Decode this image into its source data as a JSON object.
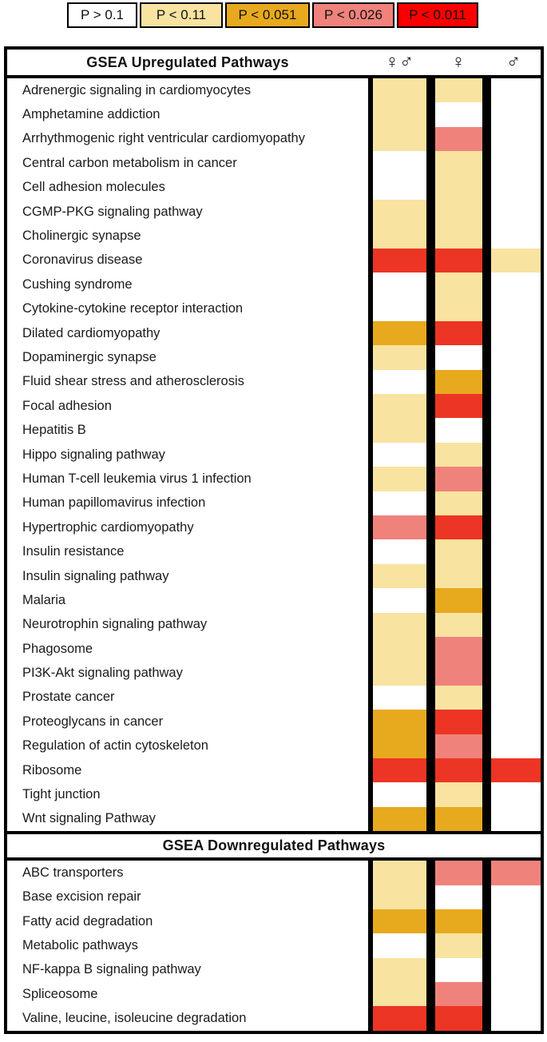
{
  "colors": {
    "white": "#FFFFFF",
    "cream": "#F8E3A1",
    "gold": "#E7A91E",
    "salmon": "#F0827C",
    "red": "#EC3524",
    "legend_red": "#FB0000",
    "border": "#000000"
  },
  "legend": {
    "items": [
      {
        "label": "P > 0.1",
        "color_key": "white"
      },
      {
        "label": "P < 0.11",
        "color_key": "cream"
      },
      {
        "label": "P < 0.051",
        "color_key": "gold"
      },
      {
        "label": "P < 0.026",
        "color_key": "salmon"
      },
      {
        "label": "P < 0.011",
        "color_key": "legend_red"
      }
    ]
  },
  "headers": {
    "col_combined": "♀♂",
    "col_female": "♀",
    "col_male": "♂"
  },
  "chart_data": {
    "type": "heatmap",
    "columns": [
      "combined",
      "female",
      "male"
    ],
    "column_symbols": [
      "♀♂",
      "♀",
      "♂"
    ],
    "value_legend": {
      "white": "P > 0.1",
      "cream": "P < 0.11",
      "gold": "P < 0.051",
      "salmon": "P < 0.026",
      "red": "P < 0.011"
    },
    "sections": [
      {
        "title": "GSEA Upregulated Pathways",
        "rows": [
          {
            "pathway": "Adrenergic signaling in cardiomyocytes",
            "cells": [
              "cream",
              "cream",
              "white"
            ]
          },
          {
            "pathway": "Amphetamine addiction",
            "cells": [
              "cream",
              "white",
              "white"
            ]
          },
          {
            "pathway": "Arrhythmogenic right ventricular cardiomyopathy",
            "cells": [
              "cream",
              "salmon",
              "white"
            ]
          },
          {
            "pathway": "Central carbon metabolism in cancer",
            "cells": [
              "white",
              "cream",
              "white"
            ]
          },
          {
            "pathway": "Cell adhesion molecules",
            "cells": [
              "white",
              "cream",
              "white"
            ]
          },
          {
            "pathway": "CGMP-PKG signaling pathway",
            "cells": [
              "cream",
              "cream",
              "white"
            ]
          },
          {
            "pathway": "Cholinergic synapse",
            "cells": [
              "cream",
              "cream",
              "white"
            ]
          },
          {
            "pathway": "Coronavirus disease",
            "cells": [
              "red",
              "red",
              "cream"
            ]
          },
          {
            "pathway": "Cushing syndrome",
            "cells": [
              "white",
              "cream",
              "white"
            ]
          },
          {
            "pathway": "Cytokine-cytokine receptor interaction",
            "cells": [
              "white",
              "cream",
              "white"
            ]
          },
          {
            "pathway": "Dilated cardiomyopathy",
            "cells": [
              "gold",
              "red",
              "white"
            ]
          },
          {
            "pathway": "Dopaminergic synapse",
            "cells": [
              "cream",
              "white",
              "white"
            ]
          },
          {
            "pathway": "Fluid shear stress and atherosclerosis",
            "cells": [
              "white",
              "gold",
              "white"
            ]
          },
          {
            "pathway": "Focal adhesion",
            "cells": [
              "cream",
              "red",
              "white"
            ]
          },
          {
            "pathway": "Hepatitis B",
            "cells": [
              "cream",
              "white",
              "white"
            ]
          },
          {
            "pathway": "Hippo signaling pathway",
            "cells": [
              "white",
              "cream",
              "white"
            ]
          },
          {
            "pathway": "Human T-cell leukemia virus 1 infection",
            "cells": [
              "cream",
              "salmon",
              "white"
            ]
          },
          {
            "pathway": "Human papillomavirus infection",
            "cells": [
              "white",
              "cream",
              "white"
            ]
          },
          {
            "pathway": "Hypertrophic cardiomyopathy",
            "cells": [
              "salmon",
              "red",
              "white"
            ]
          },
          {
            "pathway": "Insulin resistance",
            "cells": [
              "white",
              "cream",
              "white"
            ]
          },
          {
            "pathway": "Insulin signaling pathway",
            "cells": [
              "cream",
              "cream",
              "white"
            ]
          },
          {
            "pathway": "Malaria",
            "cells": [
              "white",
              "gold",
              "white"
            ]
          },
          {
            "pathway": "Neurotrophin signaling pathway",
            "cells": [
              "cream",
              "cream",
              "white"
            ]
          },
          {
            "pathway": "Phagosome",
            "cells": [
              "cream",
              "salmon",
              "white"
            ]
          },
          {
            "pathway": "PI3K-Akt signaling pathway",
            "cells": [
              "cream",
              "salmon",
              "white"
            ]
          },
          {
            "pathway": "Prostate cancer",
            "cells": [
              "white",
              "cream",
              "white"
            ]
          },
          {
            "pathway": "Proteoglycans in cancer",
            "cells": [
              "gold",
              "red",
              "white"
            ]
          },
          {
            "pathway": "Regulation of actin cytoskeleton",
            "cells": [
              "gold",
              "salmon",
              "white"
            ]
          },
          {
            "pathway": "Ribosome",
            "cells": [
              "red",
              "red",
              "red"
            ]
          },
          {
            "pathway": "Tight junction",
            "cells": [
              "white",
              "cream",
              "white"
            ]
          },
          {
            "pathway": "Wnt signaling Pathway",
            "cells": [
              "gold",
              "gold",
              "white"
            ]
          }
        ]
      },
      {
        "title": "GSEA Downregulated Pathways",
        "rows": [
          {
            "pathway": "ABC transporters",
            "cells": [
              "cream",
              "salmon",
              "salmon"
            ]
          },
          {
            "pathway": "Base excision repair",
            "cells": [
              "cream",
              "white",
              "white"
            ]
          },
          {
            "pathway": "Fatty acid degradation",
            "cells": [
              "gold",
              "gold",
              "white"
            ]
          },
          {
            "pathway": "Metabolic pathways",
            "cells": [
              "white",
              "cream",
              "white"
            ]
          },
          {
            "pathway": "NF-kappa B signaling pathway",
            "cells": [
              "cream",
              "white",
              "white"
            ]
          },
          {
            "pathway": "Spliceosome",
            "cells": [
              "cream",
              "salmon",
              "white"
            ]
          },
          {
            "pathway": "Valine, leucine, isoleucine degradation",
            "cells": [
              "red",
              "red",
              "white"
            ]
          }
        ]
      }
    ]
  }
}
